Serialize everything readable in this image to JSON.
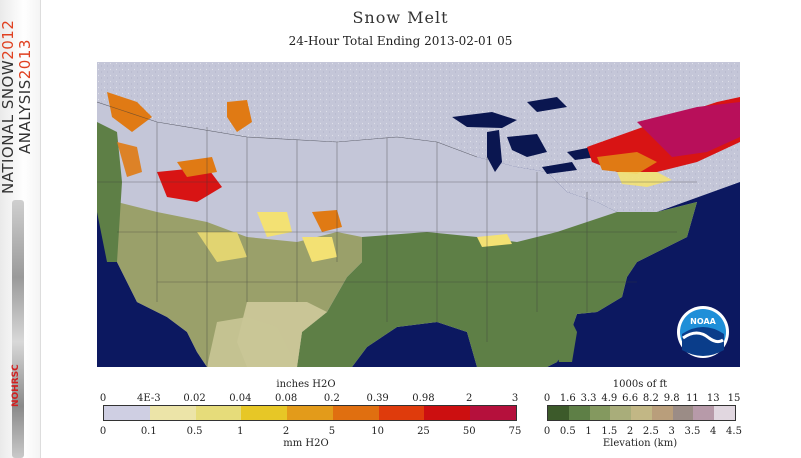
{
  "header": {
    "title": "Snow Melt",
    "subtitle": "24-Hour Total Ending 2013-02-01 05"
  },
  "banner": {
    "line1_text": "NATIONAL SNOW",
    "line1_year": "2012",
    "line2_text": "ANALYSIS",
    "line2_year": "2013",
    "logo_text": "NOHRSC"
  },
  "noaa_logo_text": "NOAA",
  "map_colors": {
    "ocean": "#0c1860",
    "canada_gray": "#c4c6d8",
    "snow_free_green": "#5e7f46",
    "dry_tan": "#c9c596",
    "melt_light": "#f3e173",
    "melt_orange": "#e07a14",
    "melt_red": "#d81414",
    "melt_magenta": "#b80f5a",
    "lakes": "#0a1650",
    "border_lines": "#3a3a3a"
  },
  "melt_legend": {
    "top_units": "inches H2O",
    "bottom_units": "mm H2O",
    "top_labels": [
      "0",
      "4E-3",
      "0.02",
      "0.04",
      "0.08",
      "0.2",
      "0.39",
      "0.98",
      "2",
      "3"
    ],
    "bottom_labels": [
      "0",
      "0.1",
      "0.5",
      "1",
      "2",
      "5",
      "10",
      "25",
      "50",
      "75"
    ],
    "colors": [
      "#cfcfe3",
      "#ece4a8",
      "#e6dc7a",
      "#e7c726",
      "#e39b1a",
      "#e06f10",
      "#df3b0c",
      "#cc0f10",
      "#b5103c"
    ]
  },
  "elev_legend": {
    "top_units": "1000s of ft",
    "bottom_units": "Elevation (km)",
    "top_labels": [
      "0",
      "1.6",
      "3.3",
      "4.9",
      "6.6",
      "8.2",
      "9.8",
      "11",
      "13",
      "15"
    ],
    "bottom_labels": [
      "0",
      "0.5",
      "1",
      "1.5",
      "2",
      "2.5",
      "3",
      "3.5",
      "4",
      "4.5"
    ],
    "colors": [
      "#3c5a2a",
      "#5e7f46",
      "#84995f",
      "#a9ad7a",
      "#c2b785",
      "#b99e7b",
      "#9b8c86",
      "#b79aa9",
      "#e1d7e0"
    ]
  }
}
